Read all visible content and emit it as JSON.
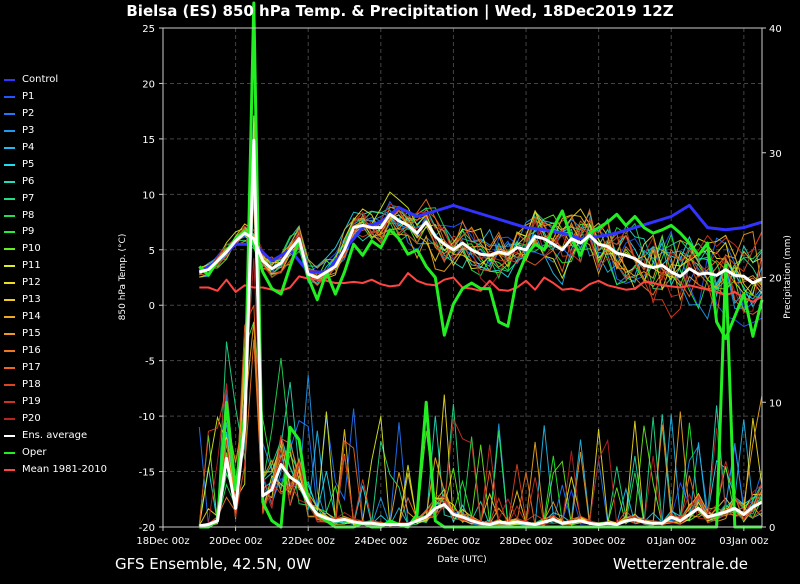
{
  "header": {
    "title": "Bielsa  (ES)  850 hPa Temp. & Precipitation | Wed, 18Dec2019 12Z"
  },
  "footer": {
    "left": "GFS Ensemble, 42.5N, 0W",
    "right": "Wetterzentrale.de"
  },
  "chart_data": {
    "type": "line",
    "xlabel": "Date (UTC)",
    "ylabel": "850 hPa Temp. (°C)",
    "y2label": "Precipitation (mm)",
    "x_ticks": [
      "18Dec 00z",
      "20Dec 00z",
      "22Dec 00z",
      "24Dec 00z",
      "26Dec 00z",
      "28Dec 00z",
      "30Dec 00z",
      "01Jan 00z",
      "03Jan 00z"
    ],
    "xlim": [
      0,
      16.5
    ],
    "ylim": [
      -20,
      25
    ],
    "y_ticks": [
      -20,
      -15,
      -10,
      -5,
      0,
      5,
      10,
      15,
      20,
      25
    ],
    "y2lim": [
      0,
      40
    ],
    "y2_ticks": [
      0,
      10,
      20,
      30,
      40
    ],
    "grid": true,
    "legend_position": "left",
    "legend": [
      {
        "name": "Control",
        "color": "#3333ff"
      },
      {
        "name": "P1",
        "color": "#2255ff"
      },
      {
        "name": "P2",
        "color": "#2277ff"
      },
      {
        "name": "P3",
        "color": "#2299ee"
      },
      {
        "name": "P4",
        "color": "#22bbee"
      },
      {
        "name": "P5",
        "color": "#22ddee"
      },
      {
        "name": "P6",
        "color": "#22ddbb"
      },
      {
        "name": "P7",
        "color": "#22dd88"
      },
      {
        "name": "P8",
        "color": "#22dd55"
      },
      {
        "name": "P9",
        "color": "#22ee33"
      },
      {
        "name": "P10",
        "color": "#66ee22"
      },
      {
        "name": "P11",
        "color": "#ddee22"
      },
      {
        "name": "P12",
        "color": "#eedd22"
      },
      {
        "name": "P13",
        "color": "#eecc22"
      },
      {
        "name": "P14",
        "color": "#eeaa22"
      },
      {
        "name": "P15",
        "color": "#ee9922"
      },
      {
        "name": "P16",
        "color": "#ee7722"
      },
      {
        "name": "P17",
        "color": "#ee6622"
      },
      {
        "name": "P18",
        "color": "#dd4422"
      },
      {
        "name": "P19",
        "color": "#cc3322"
      },
      {
        "name": "P20",
        "color": "#bb2222"
      },
      {
        "name": "Ens. average",
        "color": "#ffffff"
      },
      {
        "name": "Oper",
        "color": "#22ee22"
      },
      {
        "name": "Mean 1981-2010",
        "color": "#ff4444"
      }
    ],
    "series": [
      {
        "name": "Ens. average",
        "axis": "temp",
        "color": "#ffffff",
        "x": [
          1,
          1.25,
          1.5,
          1.75,
          2,
          2.25,
          2.5,
          2.75,
          3,
          3.25,
          3.5,
          3.75,
          4,
          4.25,
          4.5,
          4.75,
          5,
          5.25,
          5.5,
          5.75,
          6,
          6.25,
          6.5,
          6.75,
          7,
          7.25,
          7.5,
          7.75,
          8,
          8.25,
          8.5,
          8.75,
          9,
          9.25,
          9.5,
          9.75,
          10,
          10.25,
          10.5,
          10.75,
          11,
          11.25,
          11.5,
          11.75,
          12,
          12.25,
          12.5,
          12.75,
          13,
          13.25,
          13.5,
          13.75,
          14,
          14.25,
          14.5,
          14.75,
          15,
          15.25,
          15.5,
          15.75,
          16,
          16.25,
          16.5
        ],
        "y": [
          3,
          3.2,
          4,
          4.8,
          5.8,
          6.5,
          6,
          4,
          3.3,
          3.8,
          5,
          6,
          2.8,
          2.5,
          3,
          3.5,
          5,
          7,
          7.2,
          7,
          7,
          8.2,
          7.6,
          7.2,
          6.5,
          7.5,
          6.2,
          5.5,
          5,
          5.6,
          5,
          4.6,
          4.5,
          4.8,
          4.6,
          5.2,
          5,
          6.2,
          6,
          5.5,
          5,
          6,
          5.6,
          6.3,
          5.5,
          5.3,
          4.7,
          4.5,
          4.2,
          3.6,
          3.4,
          3.6,
          3,
          2.6,
          3.3,
          2.8,
          2.9,
          2.7,
          3.2,
          2.7,
          2.6,
          2,
          2.4
        ]
      },
      {
        "name": "Mean 1981-2010",
        "axis": "temp",
        "color": "#ff4444",
        "x": [
          1,
          1.25,
          1.5,
          1.75,
          2,
          2.25,
          2.5,
          2.75,
          3,
          3.25,
          3.5,
          3.75,
          4,
          4.25,
          4.5,
          4.75,
          5,
          5.25,
          5.5,
          5.75,
          6,
          6.25,
          6.5,
          6.75,
          7,
          7.25,
          7.5,
          7.75,
          8,
          8.25,
          8.5,
          8.75,
          9,
          9.25,
          9.5,
          9.75,
          10,
          10.25,
          10.5,
          10.75,
          11,
          11.25,
          11.5,
          11.75,
          12,
          12.25,
          12.5,
          12.75,
          13,
          13.25,
          13.5,
          13.75,
          14,
          14.25,
          14.5,
          14.75,
          15,
          15.25,
          15.5,
          15.75,
          16,
          16.25,
          16.5
        ],
        "y": [
          1.6,
          1.6,
          1.3,
          2.3,
          1.2,
          1.8,
          1.6,
          1.6,
          1.4,
          1.3,
          1.6,
          2.6,
          2.4,
          2.3,
          2.2,
          2,
          2,
          2.1,
          2,
          2.3,
          1.9,
          1.7,
          1.8,
          2.9,
          2.2,
          1.9,
          1.8,
          2.3,
          2.5,
          1.6,
          1.5,
          1.3,
          2.2,
          1.4,
          1.3,
          1.6,
          2.2,
          1.4,
          2.5,
          2,
          1.4,
          1.5,
          1.3,
          1.9,
          2.2,
          1.8,
          1.6,
          1.4,
          1.5,
          2.1,
          2,
          1.8,
          1.7,
          1.6,
          1.8,
          1.6,
          1.4,
          1.2,
          0.9,
          1.2,
          0.7,
          0.3,
          0.8
        ]
      },
      {
        "name": "Oper",
        "axis": "temp",
        "color": "#22ee22",
        "x": [
          1,
          1.25,
          1.5,
          1.75,
          2,
          2.25,
          2.5,
          2.75,
          3,
          3.25,
          3.5,
          3.75,
          4,
          4.25,
          4.5,
          4.75,
          5,
          5.25,
          5.5,
          5.75,
          6,
          6.25,
          6.5,
          6.75,
          7,
          7.25,
          7.5,
          7.75,
          8,
          8.25,
          8.5,
          8.75,
          9,
          9.25,
          9.5,
          9.75,
          10,
          10.25,
          10.5,
          10.75,
          11,
          11.25,
          11.5,
          11.75,
          12,
          12.25,
          12.5,
          12.75,
          13,
          13.25,
          13.5,
          13.75,
          14,
          14.25,
          14.5,
          14.75,
          15,
          15.25,
          15.5,
          15.75,
          16,
          16.25,
          16.5
        ],
        "y": [
          3.5,
          2.7,
          4,
          4.9,
          6,
          6.7,
          5.5,
          3,
          1.5,
          1,
          3.5,
          5.8,
          2.5,
          0.5,
          3,
          1,
          3,
          5.5,
          4.5,
          5.8,
          5.2,
          6.8,
          6,
          4.6,
          5,
          3.5,
          2.5,
          -2.7,
          0.1,
          1.5,
          2,
          1.5,
          1.5,
          -1.5,
          -1.9,
          2.5,
          4.5,
          5.5,
          5,
          7,
          8.5,
          6,
          4.5,
          6.5,
          7,
          7.5,
          8.2,
          7.2,
          8,
          7,
          6.5,
          6.8,
          7.2,
          6.5,
          5.6,
          4.5,
          5.6,
          -1.5,
          -3,
          -1,
          1,
          -2.8,
          0.5
        ]
      },
      {
        "name": "Control",
        "axis": "temp",
        "color": "#3333ff",
        "x": [
          1,
          1.5,
          2,
          2.5,
          3,
          3.5,
          4,
          4.5,
          5,
          5.5,
          6,
          6.5,
          7,
          7.5,
          8,
          8.5,
          9,
          9.5,
          10,
          10.5,
          11,
          11.5,
          12,
          12.5,
          13,
          13.5,
          14,
          14.5,
          15,
          15.5,
          16,
          16.5
        ],
        "y": [
          3,
          4,
          5.5,
          5.5,
          4,
          5,
          3,
          3,
          5,
          7,
          7.5,
          8.8,
          8,
          8.5,
          9,
          8.5,
          8,
          7.5,
          7,
          6.8,
          6.5,
          6,
          6.2,
          6.5,
          7,
          7.5,
          8,
          9,
          7,
          6.8,
          7,
          7.5
        ]
      },
      {
        "name": "Oper precip",
        "axis": "precip",
        "color": "#22ee22",
        "x": [
          1,
          1.25,
          1.5,
          1.75,
          2,
          2.25,
          2.5,
          2.75,
          3,
          3.25,
          3.5,
          3.75,
          4,
          4.25,
          4.5,
          4.75,
          5,
          5.25,
          5.5,
          5.75,
          6,
          6.25,
          6.5,
          6.75,
          7,
          7.25,
          7.5,
          7.75,
          8,
          8.25,
          8.5,
          8.75,
          9,
          9.25,
          9.5,
          9.75,
          10,
          10.25,
          10.5,
          10.75,
          11,
          11.25,
          11.5,
          11.75,
          12,
          12.25,
          12.5,
          12.75,
          13,
          13.25,
          13.5,
          13.75,
          14,
          14.25,
          14.5,
          14.75,
          15,
          15.25,
          15.5,
          15.75,
          16,
          16.25,
          16.5
        ],
        "y": [
          0,
          0,
          0.5,
          10,
          3,
          9,
          42,
          2,
          0.5,
          0,
          8,
          7,
          2,
          1,
          0.5,
          0,
          0,
          0,
          0.3,
          0,
          0,
          0.5,
          0.2,
          0,
          1,
          10,
          0.5,
          0,
          0,
          0,
          0,
          0,
          0,
          0,
          0,
          0,
          0,
          0,
          0,
          0,
          0,
          0,
          0,
          0,
          0,
          0,
          0,
          0,
          0,
          0,
          0,
          0,
          0,
          0,
          0,
          0,
          0,
          0,
          21,
          0,
          0,
          0,
          0
        ]
      },
      {
        "name": "Ens. average precip",
        "axis": "precip",
        "color": "#ffffff",
        "x": [
          1,
          1.25,
          1.5,
          1.75,
          2,
          2.25,
          2.5,
          2.75,
          3,
          3.25,
          3.5,
          3.75,
          4,
          4.25,
          4.5,
          4.75,
          5,
          5.25,
          5.5,
          5.75,
          6,
          6.25,
          6.5,
          6.75,
          7,
          7.25,
          7.5,
          7.75,
          8,
          8.25,
          8.5,
          8.75,
          9,
          9.25,
          9.5,
          9.75,
          10,
          10.25,
          10.5,
          10.75,
          11,
          11.25,
          11.5,
          11.75,
          12,
          12.25,
          12.5,
          12.75,
          13,
          13.25,
          13.5,
          13.75,
          14,
          14.25,
          14.5,
          14.75,
          15,
          15.25,
          15.5,
          15.75,
          16,
          16.25,
          16.5
        ],
        "y": [
          0.1,
          0.2,
          0.5,
          5.5,
          1.5,
          8,
          31,
          2.5,
          3,
          5,
          4,
          3.5,
          2,
          1,
          0.7,
          0.5,
          0.6,
          0.4,
          0.3,
          0.3,
          0.2,
          0.2,
          0.2,
          0.2,
          0.5,
          0.8,
          1.5,
          1.8,
          1,
          0.8,
          0.5,
          0.3,
          0.2,
          0.4,
          0.3,
          0.4,
          0.3,
          0.2,
          0.4,
          0.6,
          0.3,
          0.4,
          0.5,
          0.3,
          0.2,
          0.3,
          0.2,
          0.5,
          0.6,
          0.4,
          0.3,
          0.3,
          0.8,
          0.5,
          1,
          1.5,
          0.8,
          1,
          1.2,
          1.5,
          1,
          1.6,
          2
        ]
      }
    ]
  }
}
